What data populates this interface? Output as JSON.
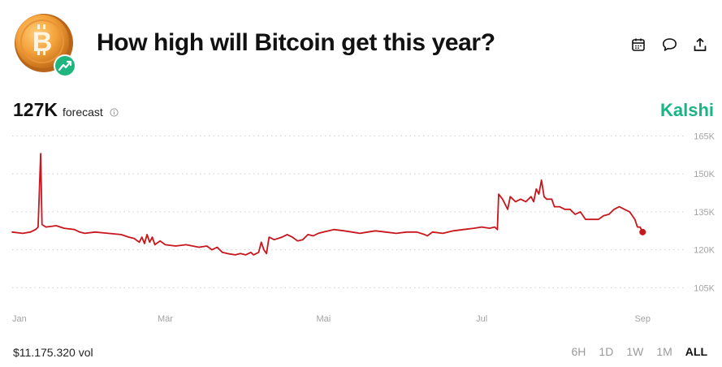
{
  "header": {
    "title": "How high will Bitcoin get this year?",
    "logo_icon": "bitcoin-coin-icon",
    "badge_icon": "trending-up-icon",
    "actions": [
      {
        "name": "calendar-icon"
      },
      {
        "name": "comment-icon"
      },
      {
        "name": "share-icon"
      }
    ]
  },
  "forecast": {
    "value": "127K",
    "label": "forecast",
    "info_icon": "info-icon"
  },
  "brand": {
    "name": "Kalshi",
    "color": "#19b583"
  },
  "footer": {
    "volume": "$11.175.320 vol",
    "ranges": [
      "6H",
      "1D",
      "1W",
      "1M",
      "ALL"
    ],
    "active_range": "ALL"
  },
  "chart_data": {
    "type": "line",
    "ylim": [
      100,
      168
    ],
    "y_ticks": [
      {
        "value": 165,
        "label": "165K"
      },
      {
        "value": 150,
        "label": "150K"
      },
      {
        "value": 135,
        "label": "135K"
      },
      {
        "value": 120,
        "label": "120K"
      },
      {
        "value": 105,
        "label": "105K"
      }
    ],
    "x_range": [
      0,
      252
    ],
    "x_ticks": [
      {
        "value": 0,
        "label": "Jan"
      },
      {
        "value": 59,
        "label": "Mär"
      },
      {
        "value": 120,
        "label": "Mai"
      },
      {
        "value": 181,
        "label": "Jul"
      },
      {
        "value": 243,
        "label": "Sep"
      }
    ],
    "grid": true,
    "line_color": "#c8161d",
    "series": [
      {
        "points": [
          [
            0,
            127
          ],
          [
            4,
            126.5
          ],
          [
            7,
            127
          ],
          [
            9,
            128
          ],
          [
            10,
            129
          ],
          [
            11,
            158
          ],
          [
            11.5,
            130
          ],
          [
            13,
            129
          ],
          [
            17,
            129.5
          ],
          [
            20,
            128.5
          ],
          [
            24,
            128
          ],
          [
            26,
            127
          ],
          [
            28,
            126.5
          ],
          [
            32,
            127
          ],
          [
            37,
            126.5
          ],
          [
            42,
            126
          ],
          [
            45,
            125
          ],
          [
            47,
            124.5
          ],
          [
            49,
            123
          ],
          [
            50,
            125
          ],
          [
            51,
            122.5
          ],
          [
            52,
            126
          ],
          [
            53,
            123
          ],
          [
            54,
            125
          ],
          [
            55,
            122
          ],
          [
            57,
            123.5
          ],
          [
            59,
            122
          ],
          [
            63,
            121.5
          ],
          [
            67,
            122
          ],
          [
            72,
            121
          ],
          [
            75,
            121.5
          ],
          [
            77,
            120
          ],
          [
            79,
            121
          ],
          [
            81,
            119
          ],
          [
            83,
            118.5
          ],
          [
            86,
            118
          ],
          [
            88,
            118.5
          ],
          [
            90,
            118
          ],
          [
            92,
            119
          ],
          [
            93,
            118
          ],
          [
            95,
            119
          ],
          [
            96,
            123
          ],
          [
            97,
            120
          ],
          [
            98,
            118.5
          ],
          [
            99,
            125
          ],
          [
            101,
            124
          ],
          [
            104,
            125
          ],
          [
            106,
            126
          ],
          [
            108,
            125
          ],
          [
            110,
            123.5
          ],
          [
            112,
            124
          ],
          [
            114,
            126
          ],
          [
            116,
            125.5
          ],
          [
            118,
            126.5
          ],
          [
            120,
            127
          ],
          [
            124,
            128
          ],
          [
            128,
            127.5
          ],
          [
            131,
            127
          ],
          [
            134,
            126.5
          ],
          [
            137,
            127
          ],
          [
            140,
            127.5
          ],
          [
            144,
            127
          ],
          [
            148,
            126.5
          ],
          [
            152,
            127
          ],
          [
            156,
            127
          ],
          [
            159,
            126
          ],
          [
            160,
            125.5
          ],
          [
            162,
            127
          ],
          [
            166,
            126.5
          ],
          [
            170,
            127.5
          ],
          [
            174,
            128
          ],
          [
            178,
            128.5
          ],
          [
            181,
            129
          ],
          [
            184,
            128.5
          ],
          [
            186,
            129
          ],
          [
            187,
            128
          ],
          [
            187.5,
            142
          ],
          [
            189,
            140
          ],
          [
            191,
            136
          ],
          [
            192,
            141
          ],
          [
            194,
            139
          ],
          [
            196,
            140
          ],
          [
            198,
            139
          ],
          [
            200,
            141
          ],
          [
            201,
            139
          ],
          [
            202,
            144
          ],
          [
            203,
            142
          ],
          [
            204,
            147.5
          ],
          [
            205,
            141
          ],
          [
            206,
            140
          ],
          [
            208,
            140
          ],
          [
            209,
            137
          ],
          [
            211,
            137
          ],
          [
            213,
            136
          ],
          [
            215,
            136
          ],
          [
            217,
            134
          ],
          [
            219,
            135
          ],
          [
            221,
            132
          ],
          [
            223,
            132
          ],
          [
            226,
            132
          ],
          [
            228,
            133.5
          ],
          [
            230,
            134
          ],
          [
            232,
            136
          ],
          [
            234,
            137
          ],
          [
            236,
            136
          ],
          [
            238,
            135
          ],
          [
            240,
            132
          ],
          [
            241,
            129
          ],
          [
            242,
            129
          ],
          [
            243,
            127
          ]
        ]
      }
    ]
  }
}
